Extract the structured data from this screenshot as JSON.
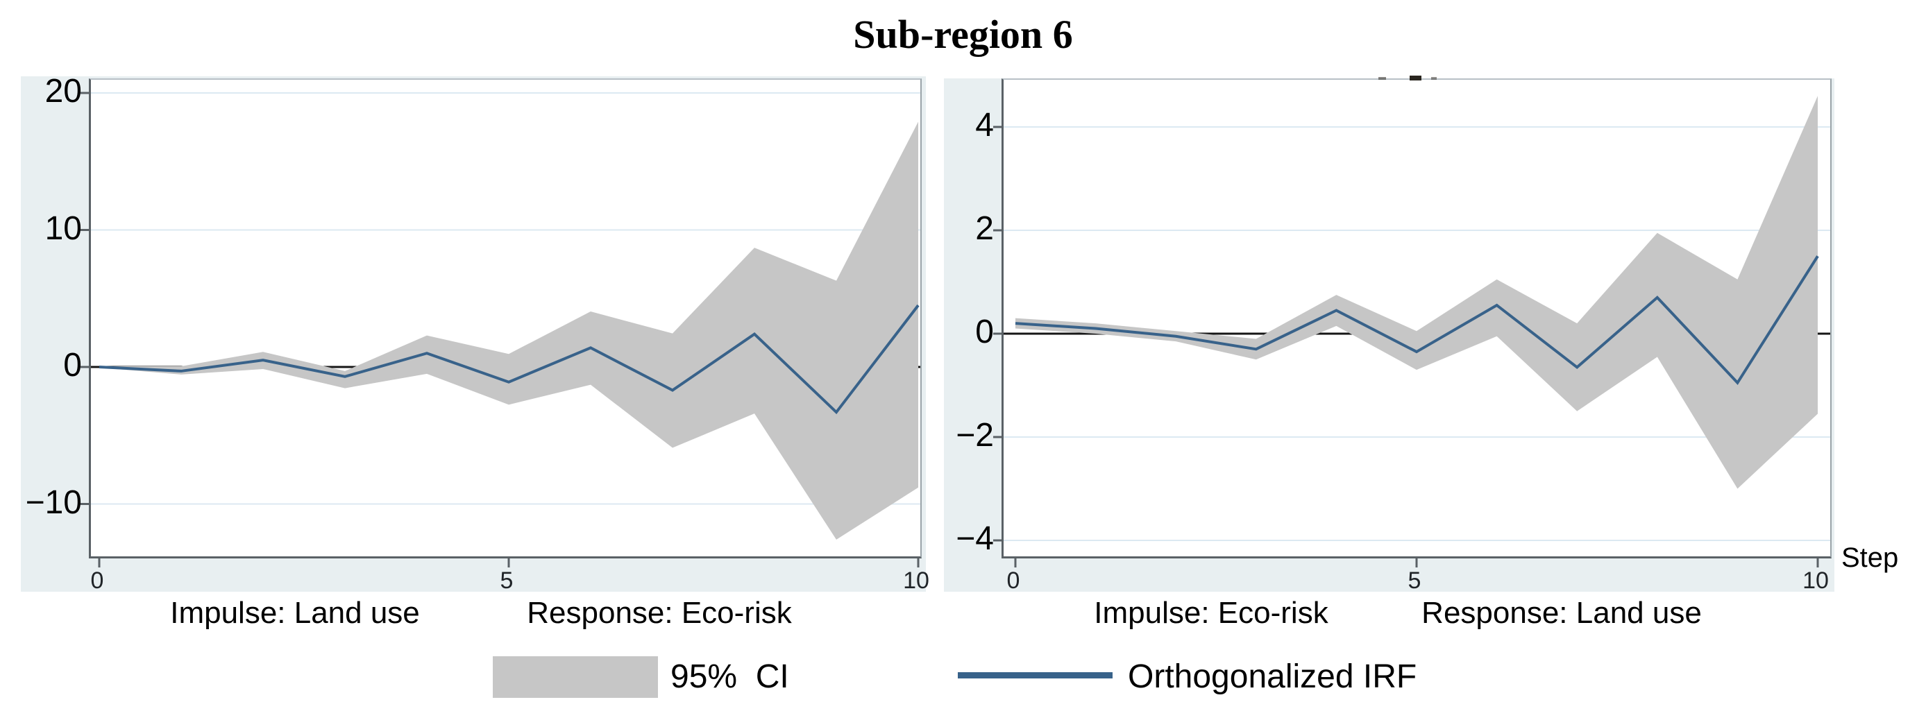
{
  "title": "Sub-region 6",
  "step_axis_label": "Step",
  "colors": {
    "panel_background": "#e8eff1",
    "plot_background": "#ffffff",
    "gridline": "#dce9f2",
    "axis_line": "#5a6166",
    "zero_line": "#161616",
    "ci_band": "#c6c6c6",
    "irf_line": "#38628a"
  },
  "legend": {
    "ci_label": "95%  CI",
    "irf_label": "Orthogonalized IRF"
  },
  "chart_data": [
    {
      "type": "area",
      "panel": "left",
      "impulse_label": "Impulse: Land use",
      "response_label": "Response: Eco-risk",
      "x": [
        0,
        1,
        2,
        3,
        4,
        5,
        6,
        7,
        8,
        9,
        10
      ],
      "xticks": [
        0,
        5,
        10
      ],
      "xtick_labels": [
        "0",
        "5",
        "10"
      ],
      "yticks": [
        -10,
        0,
        10,
        20
      ],
      "ytick_labels": [
        "−10",
        "0",
        "10",
        "20"
      ],
      "xlim": [
        -0.1,
        10.03
      ],
      "ylim": [
        -13.8,
        21.0
      ],
      "grid": true,
      "zero_line": true,
      "series": [
        {
          "name": "Orthogonalized IRF",
          "values": [
            0,
            -0.3,
            0.5,
            -0.7,
            1.0,
            -1.1,
            1.4,
            -1.7,
            2.4,
            -3.3,
            4.5
          ]
        },
        {
          "name": "95% CI upper",
          "values": [
            0.05,
            0.05,
            1.1,
            -0.3,
            2.3,
            0.95,
            4.05,
            2.45,
            8.7,
            6.3,
            17.9
          ]
        },
        {
          "name": "95% CI lower",
          "values": [
            -0.05,
            -0.55,
            -0.15,
            -1.55,
            -0.5,
            -2.75,
            -1.3,
            -5.9,
            -3.4,
            -12.6,
            -8.8
          ]
        }
      ]
    },
    {
      "type": "area",
      "panel": "right",
      "impulse_label": "Impulse: Eco-risk",
      "response_label": "Response: Land use",
      "x": [
        0,
        1,
        2,
        3,
        4,
        5,
        6,
        7,
        8,
        9,
        10
      ],
      "xticks": [
        0,
        5,
        10
      ],
      "xtick_labels": [
        "0",
        "5",
        "10"
      ],
      "yticks": [
        -4,
        -2,
        0,
        2,
        4
      ],
      "ytick_labels": [
        "−4",
        "−2",
        "0",
        "2",
        "4"
      ],
      "xlim": [
        -0.15,
        10.16
      ],
      "ylim": [
        -4.3,
        4.9
      ],
      "grid": true,
      "zero_line": true,
      "series": [
        {
          "name": "Orthogonalized IRF",
          "values": [
            0.2,
            0.1,
            -0.05,
            -0.3,
            0.45,
            -0.35,
            0.55,
            -0.65,
            0.7,
            -0.95,
            1.5
          ]
        },
        {
          "name": "95% CI upper",
          "values": [
            0.3,
            0.2,
            0.05,
            -0.1,
            0.75,
            0.05,
            1.05,
            0.2,
            1.95,
            1.05,
            4.6
          ]
        },
        {
          "name": "95% CI lower",
          "values": [
            0.1,
            0.0,
            -0.15,
            -0.5,
            0.15,
            -0.7,
            -0.05,
            -1.5,
            -0.45,
            -3.0,
            -1.55
          ]
        }
      ]
    }
  ]
}
